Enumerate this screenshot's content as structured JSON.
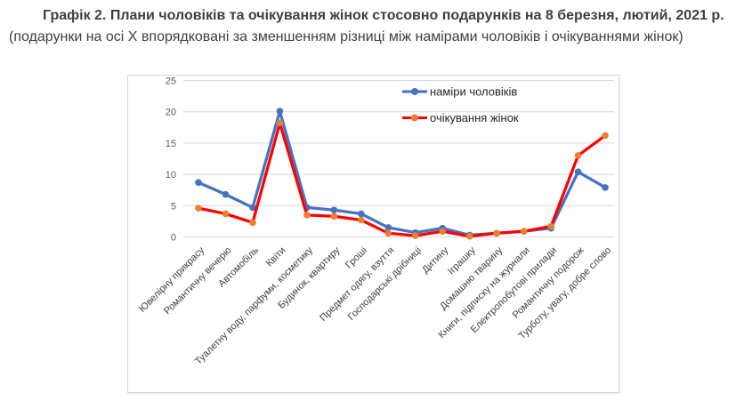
{
  "title": {
    "bold": "Графік 2. Плани чоловіків та очікування жінок стосовно подарунків на 8 березня, лютий, 2021 р.",
    "normal": "(подарунки на осі X впорядковані за зменшенням різниці між намірами чоловіків і очікуваннями жінок)"
  },
  "chart_data": {
    "type": "line",
    "title": "",
    "xlabel": "",
    "ylabel": "",
    "ylim": [
      0,
      25
    ],
    "yticks": [
      0,
      5,
      10,
      15,
      20,
      25
    ],
    "grid": "horizontal-only",
    "legend_position": "inside-top-right",
    "gridline_color": "#d9d9d9",
    "axis_label_color": "#595959",
    "category_label_color": "#404040",
    "legend_text_color": "#262626",
    "categories": [
      "Ювелірну прикрасу",
      "Романтичну вечерю",
      "Автомобіль",
      "Квіти",
      "Туалетну воду, парфуми, косметику",
      "Будинок, квартиру",
      "Гроші",
      "Предмет одягу, взуття",
      "Господарські дрібниці",
      "Дитину",
      "Іграшку",
      "Домашню тварину",
      "Книги, підписку на журнали",
      "Електропобутові прилади",
      "Романтичну подорож",
      "Турботу, увагу, добре слово"
    ],
    "series": [
      {
        "name": "наміри чоловіків",
        "line_color": "#4472C4",
        "marker_color": "#4472C4",
        "values": [
          8.7,
          6.8,
          4.7,
          20.1,
          4.7,
          4.3,
          3.7,
          1.5,
          0.7,
          1.4,
          0.3,
          0.6,
          0.9,
          1.4,
          10.4,
          7.9
        ]
      },
      {
        "name": "очікування жінок",
        "line_color": "#FF0000",
        "marker_color": "#ED7D31",
        "values": [
          4.6,
          3.7,
          2.3,
          18.2,
          3.5,
          3.3,
          2.7,
          0.6,
          0.2,
          0.9,
          0.1,
          0.6,
          0.9,
          1.7,
          13.0,
          16.2
        ]
      }
    ]
  }
}
